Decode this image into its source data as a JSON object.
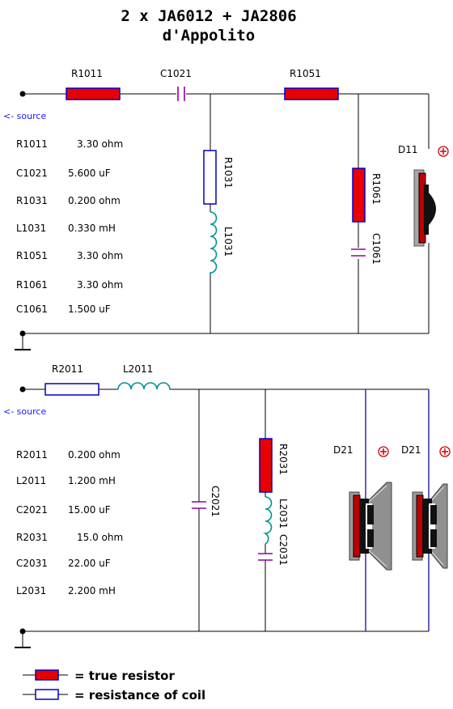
{
  "title_line1": "2 x JA6012 + JA2806",
  "title_line2": "d'Appolito",
  "source_label": "<- source",
  "top": {
    "R1011": "R1011",
    "C1021": "C1021",
    "R1051": "R1051",
    "R1031": "R1031",
    "L1031": "L1031",
    "R1061": "R1061",
    "C1061": "C1061",
    "D11": "D11",
    "values": [
      {
        "name": "R1011",
        "value": "3.30 ohm"
      },
      {
        "name": "C1021",
        "value": "5.600 uF"
      },
      {
        "name": "R1031",
        "value": "0.200 ohm"
      },
      {
        "name": "L1031",
        "value": "0.330 mH"
      },
      {
        "name": "R1051",
        "value": "3.30 ohm"
      },
      {
        "name": "R1061",
        "value": "3.30 ohm"
      },
      {
        "name": "C1061",
        "value": "1.500 uF"
      }
    ]
  },
  "bottom": {
    "R2011": "R2011",
    "L2011": "L2011",
    "C2021": "C2021",
    "R2031": "R2031",
    "L2031": "L2031",
    "C2031": "C2031",
    "D21a": "D21",
    "D21b": "D21",
    "values": [
      {
        "name": "R2011",
        "value": "0.200 ohm"
      },
      {
        "name": "L2011",
        "value": "1.200 mH"
      },
      {
        "name": "C2021",
        "value": "15.00 uF"
      },
      {
        "name": "R2031",
        "value": "15.0 ohm"
      },
      {
        "name": "C2031",
        "value": "22.00 uF"
      },
      {
        "name": "L2031",
        "value": "2.200 mH"
      }
    ]
  },
  "legend": {
    "true_resistor": "= true resistor",
    "coil_resistance": "= resistance of coil"
  },
  "colors": {
    "resistor_fill": "#e80000",
    "component_outline": "#0000c8",
    "coil": "#009090",
    "capacitor": "#9000a0",
    "polarity": "#d00000"
  }
}
